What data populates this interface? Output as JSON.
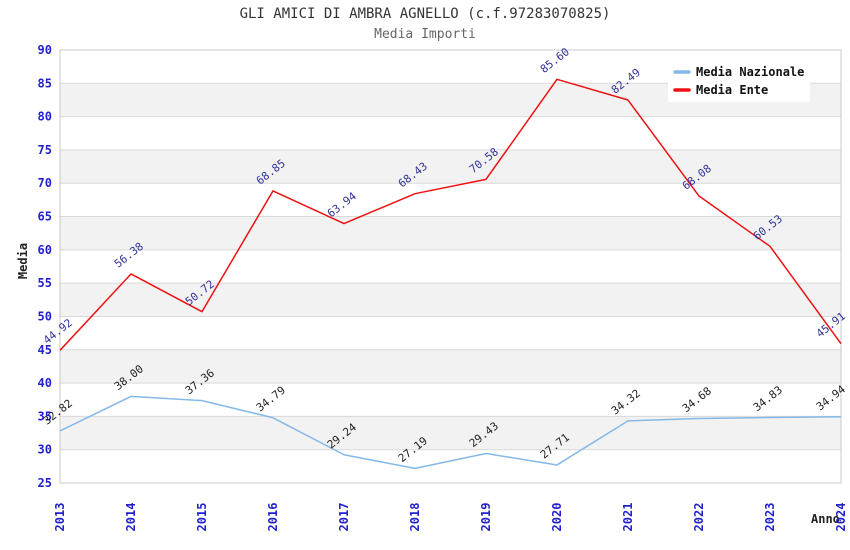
{
  "title": "GLI AMICI DI AMBRA AGNELLO (c.f.97283070825)",
  "subtitle": "Media Importi",
  "colors": {
    "axis_tick": "#2222cc",
    "band": "#f2f2f2",
    "grid": "#d9d9d9",
    "border": "#c8c8c8",
    "legend_bg": "#ffffff"
  },
  "chart_data": {
    "type": "line",
    "x": [
      2013,
      2014,
      2015,
      2016,
      2017,
      2018,
      2019,
      2020,
      2021,
      2022,
      2023,
      2024
    ],
    "series": [
      {
        "name": "Media Nazionale",
        "color": "#85b8e8",
        "label_color": "#222222",
        "values": [
          32.82,
          38.0,
          37.36,
          34.79,
          29.24,
          27.19,
          29.43,
          27.71,
          34.32,
          34.68,
          34.83,
          34.94
        ]
      },
      {
        "name": "Media Ente",
        "color": "#ee1111",
        "label_color": "#333399",
        "values": [
          44.92,
          56.38,
          50.72,
          68.85,
          63.94,
          68.43,
          70.58,
          85.6,
          82.49,
          68.08,
          60.53,
          45.91
        ]
      }
    ],
    "xlabel": "Anno",
    "ylabel": "Media",
    "ylim": [
      25,
      90
    ],
    "ytick_step": 5,
    "legend_position": "top-right",
    "grid": "horizontal-bands",
    "point_labels_decimals": 2
  }
}
